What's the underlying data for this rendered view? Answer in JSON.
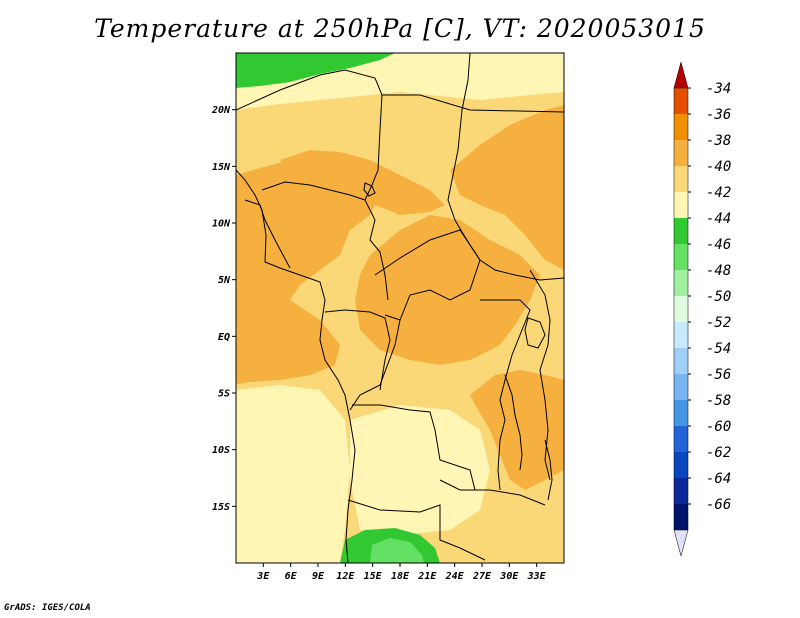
{
  "title": "Temperature at 250hPa [C], VT: 2020053015",
  "credit": "GrADS: IGES/COLA",
  "map": {
    "lon_range": [
      0,
      36
    ],
    "lat_range": [
      -20,
      25
    ],
    "lat_ticks": [
      {
        "value": 20,
        "label": "20N"
      },
      {
        "value": 15,
        "label": "15N"
      },
      {
        "value": 10,
        "label": "10N"
      },
      {
        "value": 5,
        "label": "5N"
      },
      {
        "value": 0,
        "label": "EQ"
      },
      {
        "value": -5,
        "label": "5S"
      },
      {
        "value": -10,
        "label": "10S"
      },
      {
        "value": -15,
        "label": "15S"
      }
    ],
    "lon_ticks": [
      {
        "value": 3,
        "label": "3E"
      },
      {
        "value": 6,
        "label": "6E"
      },
      {
        "value": 9,
        "label": "9E"
      },
      {
        "value": 12,
        "label": "12E"
      },
      {
        "value": 15,
        "label": "15E"
      },
      {
        "value": 18,
        "label": "18E"
      },
      {
        "value": 21,
        "label": "21E"
      },
      {
        "value": 24,
        "label": "24E"
      },
      {
        "value": 27,
        "label": "27E"
      },
      {
        "value": 30,
        "label": "30E"
      },
      {
        "value": 33,
        "label": "33E"
      }
    ]
  },
  "colorbar": {
    "labels": [
      "-34",
      "-36",
      "-38",
      "-40",
      "-42",
      "-44",
      "-46",
      "-48",
      "-50",
      "-52",
      "-54",
      "-56",
      "-58",
      "-60",
      "-62",
      "-64",
      "-66"
    ],
    "colors": [
      "#b70000",
      "#e45000",
      "#f09000",
      "#f5b040",
      "#fad878",
      "#fff5b4",
      "#32c832",
      "#64e164",
      "#a0f0a0",
      "#e0fce0",
      "#c8eaff",
      "#a0d0f8",
      "#78b4f0",
      "#4696e6",
      "#2264d8",
      "#0a46be",
      "#0a2896",
      "#00146e",
      "#e0e0f8"
    ]
  },
  "colors": {
    "band_m44_m42": "#fff5b4",
    "band_m42_m40": "#fad878",
    "band_m40_m38": "#f5b040",
    "band_m46_m44": "#32c832",
    "band_m48_m46": "#64e164",
    "boundary": "#000000"
  }
}
